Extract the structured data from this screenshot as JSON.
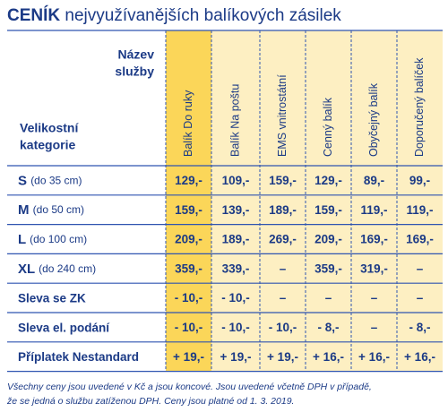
{
  "title": {
    "bold": "CENÍK",
    "rest": "nejvyužívanějších balíkových zásilek"
  },
  "table": {
    "corner_top": [
      "Název",
      "služby"
    ],
    "corner_bottom": [
      "Velikostní",
      "kategorie"
    ],
    "columns": [
      "Balík Do ruky",
      "Balík Na poštu",
      "EMS vnitrostátní",
      "Cenný balík",
      "Obyčejný balík",
      "Doporučený balíček"
    ],
    "rows": [
      {
        "label": "S",
        "note": "(do 35 cm)",
        "cells": [
          "129,-",
          "109,-",
          "159,-",
          "129,-",
          "89,-",
          "99,-"
        ]
      },
      {
        "label": "M",
        "note": "(do 50 cm)",
        "cells": [
          "159,-",
          "139,-",
          "189,-",
          "159,-",
          "119,-",
          "119,-"
        ]
      },
      {
        "label": "L",
        "note": "(do 100 cm)",
        "cells": [
          "209,-",
          "189,-",
          "269,-",
          "209,-",
          "169,-",
          "169,-"
        ]
      },
      {
        "label": "XL",
        "note": "(do 240 cm)",
        "cells": [
          "359,-",
          "339,-",
          "–",
          "359,-",
          "319,-",
          "–"
        ]
      },
      {
        "label": "Sleva se ZK",
        "cells": [
          "- 10,-",
          "- 10,-",
          "–",
          "–",
          "–",
          "–"
        ]
      },
      {
        "label": "Sleva el. podání",
        "cells": [
          "- 10,-",
          "- 10,-",
          "- 10,-",
          "- 8,-",
          "–",
          "- 8,-"
        ]
      },
      {
        "label": "Příplatek Nestandard",
        "cells": [
          "+ 19,-",
          "+ 19,-",
          "+ 19,-",
          "+ 16,-",
          "+ 16,-",
          "+ 16,-"
        ]
      }
    ]
  },
  "footer": [
    "Všechny ceny jsou uvedené v Kč a jsou koncové. Jsou uvedené včetně DPH v případě,",
    "že se jedná o službu zatíženou DPH. Ceny jsou platné od 1. 3. 2019."
  ]
}
